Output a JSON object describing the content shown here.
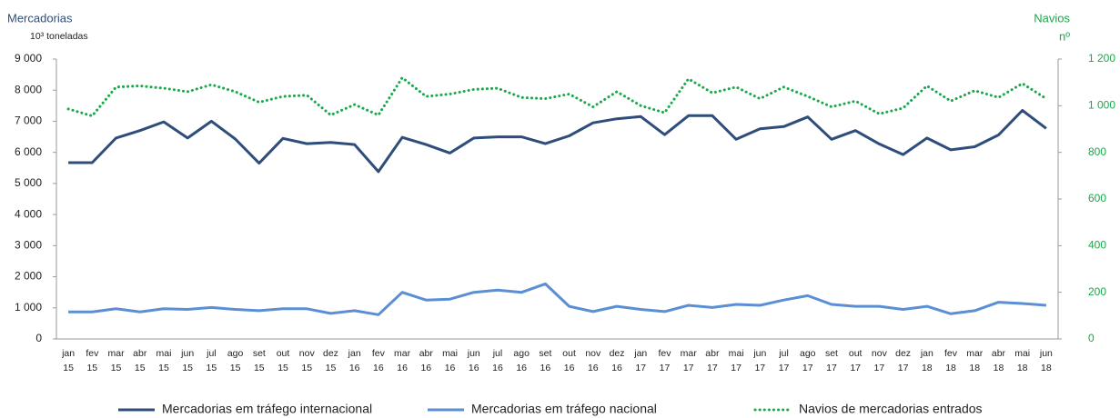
{
  "chart_data": {
    "type": "line",
    "y_title": "Mercadorias",
    "y_unit": "10³ toneladas",
    "y2_title": "Navios",
    "y2_unit": "nº",
    "categories": [
      "jan 15",
      "fev 15",
      "mar 15",
      "abr 15",
      "mai 15",
      "jun 15",
      "jul 15",
      "ago 15",
      "set 15",
      "out 15",
      "nov 15",
      "dez 15",
      "jan 16",
      "fev 16",
      "mar 16",
      "abr 16",
      "mai 16",
      "jun 16",
      "jul 16",
      "ago 16",
      "set 16",
      "out 16",
      "nov 16",
      "dez 16",
      "jan 17",
      "fev 17",
      "mar 17",
      "abr 17",
      "mai 17",
      "jun 17",
      "jul 17",
      "ago 17",
      "set 17",
      "out 17",
      "nov 17",
      "dez 17",
      "jan 18",
      "fev 18",
      "mar 18",
      "abr 18",
      "mai 18",
      "jun 18"
    ],
    "series": [
      {
        "name": "Mercadorias em tráfego internacional",
        "color": "#2e4d7b",
        "style": "solid",
        "values": [
          5670,
          5670,
          6460,
          6700,
          6980,
          6460,
          7000,
          6430,
          5650,
          6450,
          6280,
          6320,
          6250,
          5380,
          6480,
          6250,
          5980,
          6460,
          6500,
          6500,
          6280,
          6530,
          6950,
          7080,
          7150,
          6570,
          7180,
          7180,
          6420,
          6760,
          6830,
          7140,
          6420,
          6700,
          6270,
          5930,
          6460,
          6080,
          6180,
          6560,
          7350,
          6770
        ]
      },
      {
        "name": "Mercadorias em tráfego nacional",
        "color": "#5b8fd4",
        "style": "solid",
        "values": [
          870,
          870,
          970,
          870,
          970,
          950,
          1010,
          950,
          910,
          970,
          970,
          820,
          910,
          780,
          1500,
          1250,
          1280,
          1500,
          1570,
          1500,
          1770,
          1050,
          880,
          1050,
          950,
          880,
          1080,
          1010,
          1110,
          1080,
          1250,
          1390,
          1110,
          1050,
          1050,
          950,
          1050,
          810,
          910,
          1180,
          1140,
          1080
        ]
      },
      {
        "name": "Navios de mercadorias entrados",
        "color": "#1aa84a",
        "style": "dotted",
        "axis": "y2",
        "values": [
          986,
          956,
          1080,
          1085,
          1075,
          1060,
          1090,
          1060,
          1015,
          1040,
          1045,
          960,
          1005,
          960,
          1120,
          1040,
          1050,
          1070,
          1075,
          1035,
          1030,
          1050,
          995,
          1060,
          1000,
          970,
          1115,
          1055,
          1080,
          1030,
          1080,
          1040,
          995,
          1020,
          965,
          990,
          1085,
          1020,
          1065,
          1035,
          1095,
          1030
        ]
      }
    ],
    "ylim": [
      0,
      9000
    ],
    "yticks": [
      0,
      {
        "value": 1000,
        "label": "1 000"
      },
      {
        "value": 2000,
        "label": "2 000"
      },
      {
        "value": 3000,
        "label": "3 000"
      },
      {
        "value": 4000,
        "label": "4 000"
      },
      {
        "value": 5000,
        "label": "5 000"
      },
      {
        "value": 6000,
        "label": "6 000"
      },
      {
        "value": 7000,
        "label": "7 000"
      },
      {
        "value": 8000,
        "label": "8 000"
      },
      {
        "value": 9000,
        "label": "9 000"
      }
    ],
    "y2lim": [
      0,
      1200
    ],
    "y2ticks": [
      0,
      200,
      400,
      600,
      800,
      {
        "value": 1000,
        "label": "1 000"
      },
      {
        "value": 1200,
        "label": "1 200"
      }
    ],
    "y2_color": "#1aa84a",
    "y_color": "#2e4d7b"
  }
}
